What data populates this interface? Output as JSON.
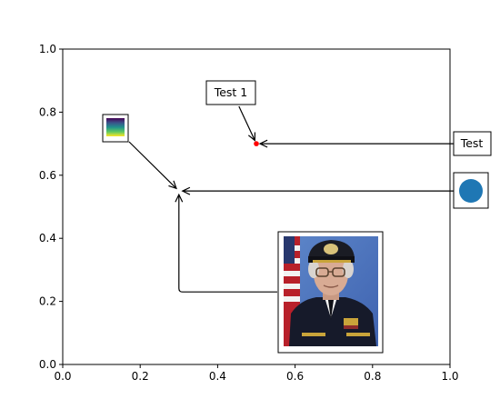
{
  "chart_data": {
    "type": "scatter",
    "title": "",
    "xlabel": "",
    "ylabel": "",
    "xlim": [
      0.0,
      1.0
    ],
    "ylim": [
      0.0,
      1.0
    ],
    "grid": false,
    "xticks": [
      "0.0",
      "0.2",
      "0.4",
      "0.6",
      "0.8",
      "1.0"
    ],
    "yticks": [
      "0.0",
      "0.2",
      "0.4",
      "0.6",
      "0.8",
      "1.0"
    ],
    "points": [
      {
        "x": 0.5,
        "y": 0.7,
        "color": "#ff0000"
      }
    ],
    "annotations": [
      {
        "kind": "text-box",
        "text": "Test 1",
        "target": [
          0.5,
          0.7
        ],
        "box_at": [
          0.4,
          0.86
        ],
        "arrow": "straight"
      },
      {
        "kind": "text-box",
        "text": "Test",
        "target": [
          0.5,
          0.7
        ],
        "box_at": [
          1.055,
          0.7
        ],
        "arrow": "straight"
      },
      {
        "kind": "circle-box",
        "color": "#1f77b4",
        "target": [
          0.3,
          0.55
        ],
        "box_at": [
          1.055,
          0.55
        ],
        "arrow": "straight"
      },
      {
        "kind": "gradient-box",
        "colormap": [
          "#440154",
          "#3b528b",
          "#21918c",
          "#5ec962",
          "#fde725"
        ],
        "target": [
          0.3,
          0.55
        ],
        "box_at": [
          0.14,
          0.75
        ],
        "arrow": "straight"
      },
      {
        "kind": "photo-box",
        "target": [
          0.3,
          0.55
        ],
        "box_at": [
          0.69,
          0.23
        ],
        "arrow": "angled"
      }
    ]
  }
}
